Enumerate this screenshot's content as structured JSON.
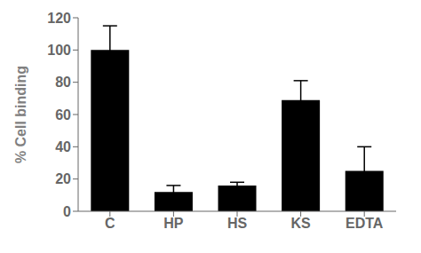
{
  "chart_data": {
    "type": "bar",
    "categories": [
      "C",
      "HP",
      "HS",
      "KS",
      "EDTA"
    ],
    "values": [
      100,
      12,
      16,
      69,
      25
    ],
    "errors": [
      15,
      4,
      2,
      12,
      15
    ],
    "color": "#000000",
    "ylabel": "% Cell binding",
    "ylim": [
      0,
      120
    ],
    "yticks": [
      0,
      20,
      40,
      60,
      80,
      100,
      120
    ],
    "grid": false
  }
}
